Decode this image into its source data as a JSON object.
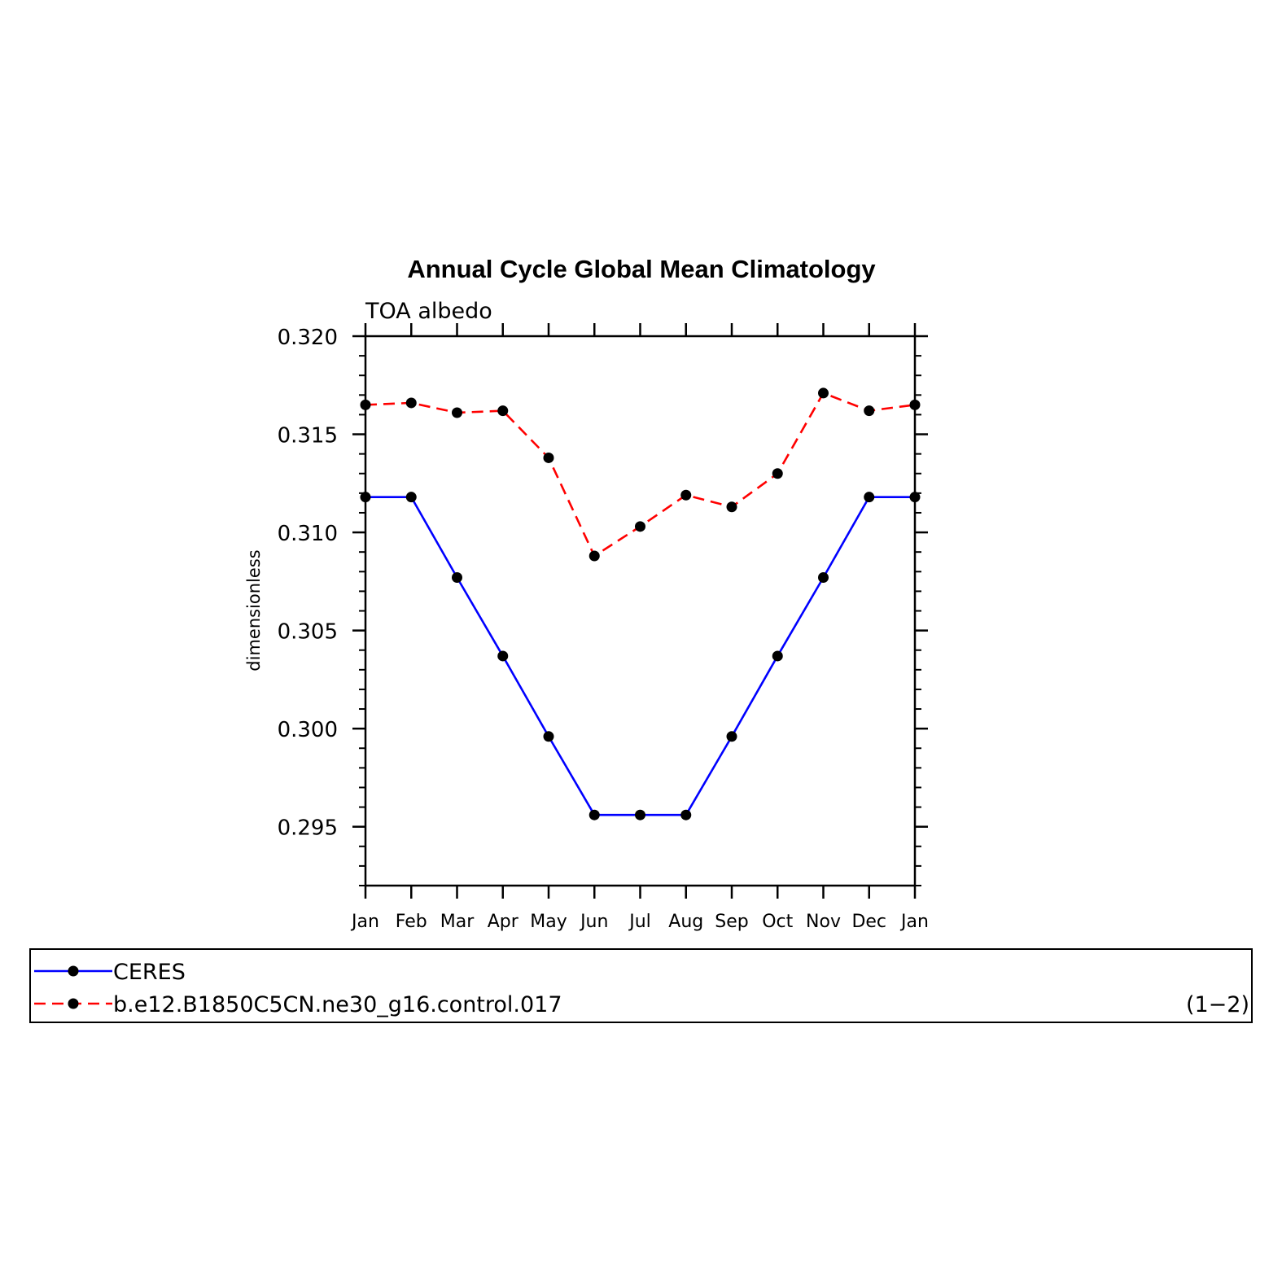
{
  "chart_data": {
    "type": "line",
    "title": "Annual Cycle Global Mean Climatology",
    "subtitle": "TOA albedo",
    "xlabel": "",
    "ylabel": "dimensionless",
    "categories": [
      "Jan",
      "Feb",
      "Mar",
      "Apr",
      "May",
      "Jun",
      "Jul",
      "Aug",
      "Sep",
      "Oct",
      "Nov",
      "Dec",
      "Jan"
    ],
    "ylim": [
      0.292,
      0.32
    ],
    "yticks": [
      "0.320",
      "0.315",
      "0.310",
      "0.305",
      "0.300",
      "0.295"
    ],
    "ytick_values": [
      0.32,
      0.315,
      0.31,
      0.305,
      0.3,
      0.295
    ],
    "grid": false,
    "legend_position": "bottom",
    "series": [
      {
        "name": "CERES",
        "color": "#0000ff",
        "line_style": "solid",
        "marker": "filled-circle",
        "values": [
          0.3118,
          0.3118,
          0.3077,
          0.3037,
          0.2996,
          0.2956,
          0.2956,
          0.2956,
          0.2996,
          0.3037,
          0.3077,
          0.3118,
          0.3118
        ]
      },
      {
        "name": "b.e12.B1850C5CN.ne30_g16.control.017",
        "color": "#ff0000",
        "line_style": "dashed",
        "marker": "filled-circle",
        "values": [
          0.3165,
          0.3166,
          0.3161,
          0.3162,
          0.3138,
          0.3088,
          0.3103,
          0.3119,
          0.3113,
          0.313,
          0.3171,
          0.3162,
          0.3165
        ]
      }
    ],
    "legend_note": "(1−2)"
  }
}
